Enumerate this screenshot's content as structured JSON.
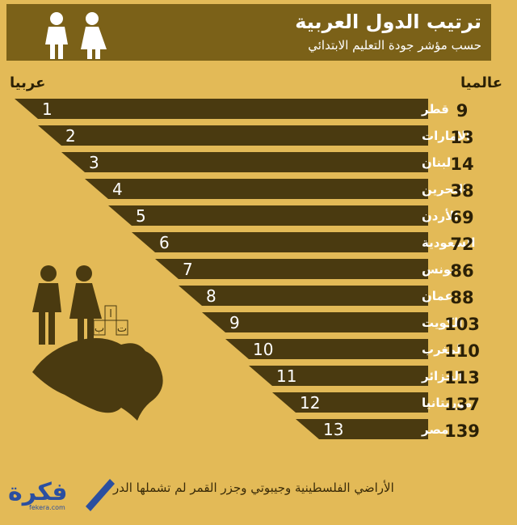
{
  "header": {
    "title": "ترتيب الدول العربية",
    "subtitle": "حسب مؤشر جودة التعليم الابتدائي"
  },
  "columns": {
    "arab_rank_label": "عربيا",
    "world_rank_label": "عالميا"
  },
  "chart_data": {
    "type": "bar",
    "title": "ترتيب الدول العربية",
    "subtitle": "حسب مؤشر جودة التعليم الابتدائي",
    "categories": [
      "قطر",
      "الإمارات",
      "لبنان",
      "البحرين",
      "الأردن",
      "السعودية",
      "تونس",
      "عمان",
      "الكويت",
      "المغرب",
      "الجزائر",
      "موريتانيا",
      "مصر"
    ],
    "arab_rank": [
      1,
      2,
      3,
      4,
      5,
      6,
      7,
      8,
      9,
      10,
      11,
      12,
      13
    ],
    "world_rank": [
      9,
      13,
      14,
      38,
      69,
      72,
      86,
      88,
      103,
      110,
      113,
      137,
      139
    ],
    "bar_color": "#4a3a10"
  },
  "map_art": {
    "letters": [
      "ا",
      "ب",
      "ت"
    ]
  },
  "footer": {
    "note": "الأراضي الفلسطينية وجيبوتي وجزر القمر لم تشملها الدر",
    "logo_text": "فكرة",
    "logo_url": "fekera.com"
  },
  "colors": {
    "background": "#e3ba57",
    "header_band": "#7b6118",
    "bar": "#4a3a10",
    "logo": "#2b4fa0"
  }
}
